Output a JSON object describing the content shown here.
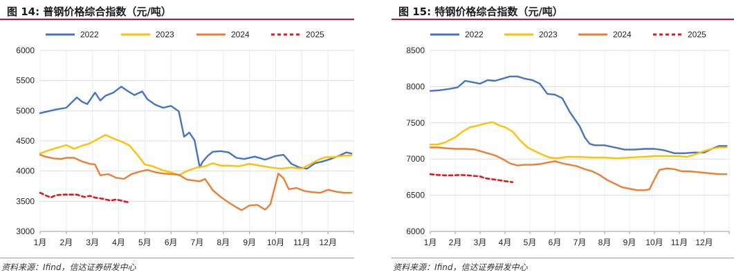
{
  "charts": [
    {
      "title": "图 14:  普钢价格综合指数（元/吨）",
      "source": "资料来源：Ifind，信达证券研发中心",
      "chart_data": {
        "type": "line",
        "title": "普钢价格综合指数（元/吨）",
        "xlabel": "",
        "ylabel": "元/吨",
        "ylim": [
          3000,
          6000
        ],
        "yticks": [
          "3000",
          "3500",
          "4000",
          "4500",
          "5000",
          "5500",
          "6000"
        ],
        "categories": [
          "1月",
          "2月",
          "3月",
          "4月",
          "5月",
          "6月",
          "7月",
          "8月",
          "9月",
          "10月",
          "11月",
          "12月"
        ],
        "x_unit": "month (1 = 1月)",
        "legend_position": "top",
        "series": [
          {
            "name": "2022",
            "color": "#4472C4",
            "dashed": false,
            "x": [
              1.0,
              1.3,
              1.6,
              2.0,
              2.4,
              2.6,
              2.8,
              3.1,
              3.3,
              3.5,
              3.8,
              4.1,
              4.3,
              4.6,
              4.9,
              5.1,
              5.4,
              5.7,
              6.0,
              6.3,
              6.5,
              6.7,
              6.9,
              7.1,
              7.2,
              7.4,
              7.6,
              7.9,
              8.2,
              8.5,
              8.8,
              9.2,
              9.6,
              10.0,
              10.3,
              10.6,
              10.9,
              11.2,
              11.5,
              11.8,
              12.1,
              12.4,
              12.7,
              12.9
            ],
            "y": [
              4960,
              4990,
              5020,
              5050,
              5220,
              5150,
              5110,
              5300,
              5170,
              5250,
              5300,
              5400,
              5340,
              5260,
              5320,
              5190,
              5100,
              5050,
              5080,
              4990,
              4570,
              4640,
              4510,
              4060,
              4150,
              4250,
              4320,
              4330,
              4310,
              4220,
              4200,
              4240,
              4190,
              4250,
              4270,
              4120,
              4060,
              4040,
              4130,
              4160,
              4200,
              4250,
              4310,
              4290
            ]
          },
          {
            "name": "2023",
            "color": "#FFC000",
            "dashed": false,
            "x": [
              1.0,
              1.3,
              1.6,
              2.0,
              2.3,
              2.6,
              2.9,
              3.2,
              3.5,
              3.8,
              4.1,
              4.4,
              4.7,
              5.0,
              5.3,
              5.7,
              6.0,
              6.3,
              6.6,
              7.0,
              7.3,
              7.6,
              7.9,
              8.2,
              8.6,
              9.0,
              9.4,
              9.8,
              10.2,
              10.6,
              11.0,
              11.3,
              11.6,
              11.9,
              12.2,
              12.5,
              12.8,
              12.9
            ],
            "y": [
              4290,
              4340,
              4380,
              4430,
              4370,
              4420,
              4460,
              4530,
              4600,
              4540,
              4490,
              4430,
              4280,
              4110,
              4080,
              4010,
              3980,
              3930,
              4000,
              4060,
              4080,
              4130,
              4090,
              4090,
              4080,
              4120,
              4090,
              4060,
              4040,
              4060,
              4040,
              4110,
              4180,
              4230,
              4230,
              4250,
              4260,
              4260
            ]
          },
          {
            "name": "2024",
            "color": "#ED7D31",
            "dashed": false,
            "x": [
              1.0,
              1.2,
              1.5,
              1.8,
              2.0,
              2.3,
              2.6,
              2.9,
              3.1,
              3.3,
              3.6,
              3.9,
              4.2,
              4.5,
              4.8,
              5.1,
              5.4,
              5.7,
              6.0,
              6.3,
              6.6,
              6.9,
              7.1,
              7.3,
              7.6,
              7.9,
              8.2,
              8.5,
              8.7,
              9.0,
              9.3,
              9.6,
              9.8,
              10.1,
              10.3,
              10.5,
              10.8,
              11.1,
              11.4,
              11.7,
              12.0,
              12.3,
              12.6,
              12.9
            ],
            "y": [
              4270,
              4240,
              4210,
              4200,
              4220,
              4220,
              4160,
              4120,
              4110,
              3930,
              3950,
              3890,
              3870,
              3950,
              3990,
              4020,
              3980,
              3960,
              3950,
              3940,
              3860,
              3840,
              3830,
              3870,
              3680,
              3570,
              3480,
              3400,
              3350,
              3430,
              3440,
              3360,
              3450,
              3960,
              3880,
              3700,
              3720,
              3670,
              3650,
              3640,
              3690,
              3660,
              3640,
              3640
            ]
          },
          {
            "name": "2025",
            "color": "#E8141D",
            "dashed": true,
            "x": [
              1.0,
              1.2,
              1.4,
              1.6,
              1.9,
              2.2,
              2.4,
              2.7,
              2.9,
              3.1,
              3.4,
              3.7,
              3.9,
              4.1,
              4.3,
              4.4
            ],
            "y": [
              3640,
              3600,
              3560,
              3600,
              3610,
              3610,
              3610,
              3570,
              3590,
              3560,
              3540,
              3510,
              3530,
              3510,
              3490,
              3480
            ]
          }
        ]
      }
    },
    {
      "title": "图 15:  特钢价格综合指数（元/吨）",
      "source": "资料来源：Ifind，信达证券研发中心",
      "chart_data": {
        "type": "line",
        "title": "特钢价格综合指数（元/吨）",
        "xlabel": "",
        "ylabel": "元/吨",
        "ylim": [
          6000,
          8500
        ],
        "yticks": [
          "6000",
          "6500",
          "7000",
          "7500",
          "8000",
          "8500"
        ],
        "categories": [
          "1月",
          "2月",
          "3月",
          "4月",
          "5月",
          "6月",
          "7月",
          "8月",
          "9月",
          "10月",
          "11月",
          "12月"
        ],
        "x_unit": "month (1 = 1月)",
        "legend_position": "top",
        "series": [
          {
            "name": "2022",
            "color": "#4472C4",
            "dashed": false,
            "x": [
              1.0,
              1.4,
              1.8,
              2.1,
              2.4,
              2.7,
              3.0,
              3.3,
              3.6,
              3.9,
              4.2,
              4.5,
              4.8,
              5.1,
              5.4,
              5.7,
              6.0,
              6.3,
              6.6,
              6.8,
              7.0,
              7.2,
              7.4,
              7.6,
              7.8,
              8.0,
              8.4,
              8.8,
              9.2,
              9.6,
              10.0,
              10.4,
              10.8,
              11.2,
              11.6,
              11.8,
              12.0,
              12.3,
              12.6,
              12.9
            ],
            "y": [
              7940,
              7950,
              7970,
              7990,
              8080,
              8060,
              8040,
              8090,
              8080,
              8110,
              8140,
              8140,
              8110,
              8090,
              8040,
              7900,
              7890,
              7840,
              7650,
              7550,
              7450,
              7300,
              7210,
              7190,
              7190,
              7190,
              7160,
              7130,
              7130,
              7140,
              7140,
              7120,
              7080,
              7080,
              7090,
              7090,
              7090,
              7140,
              7180,
              7180
            ]
          },
          {
            "name": "2023",
            "color": "#FFC000",
            "dashed": false,
            "x": [
              1.0,
              1.3,
              1.6,
              2.0,
              2.3,
              2.6,
              2.9,
              3.2,
              3.5,
              3.8,
              4.0,
              4.3,
              4.6,
              4.9,
              5.2,
              5.5,
              5.8,
              6.1,
              6.5,
              7.0,
              7.5,
              8.0,
              8.5,
              9.0,
              9.5,
              10.0,
              10.5,
              11.0,
              11.3,
              11.6,
              12.0,
              12.3,
              12.6,
              12.9
            ],
            "y": [
              7200,
              7200,
              7230,
              7300,
              7380,
              7440,
              7460,
              7490,
              7510,
              7460,
              7440,
              7380,
              7260,
              7160,
              7110,
              7060,
              7020,
              7010,
              7030,
              7030,
              7020,
              7020,
              7010,
              7020,
              7030,
              7040,
              7040,
              7040,
              7030,
              7060,
              7110,
              7140,
              7160,
              7160
            ]
          },
          {
            "name": "2024",
            "color": "#ED7D31",
            "dashed": false,
            "x": [
              1.0,
              1.3,
              1.6,
              2.0,
              2.4,
              2.8,
              3.0,
              3.3,
              3.6,
              3.9,
              4.2,
              4.5,
              4.8,
              5.1,
              5.4,
              5.7,
              6.0,
              6.3,
              6.6,
              6.9,
              7.2,
              7.5,
              7.8,
              8.1,
              8.4,
              8.7,
              9.0,
              9.3,
              9.6,
              9.8,
              10.0,
              10.2,
              10.5,
              10.8,
              11.1,
              11.4,
              11.7,
              12.0,
              12.3,
              12.6,
              12.9
            ],
            "y": [
              7160,
              7160,
              7150,
              7140,
              7140,
              7130,
              7110,
              7080,
              7050,
              7000,
              6940,
              6910,
              6920,
              6920,
              6930,
              6950,
              6970,
              6940,
              6920,
              6900,
              6860,
              6830,
              6780,
              6710,
              6660,
              6610,
              6590,
              6570,
              6570,
              6580,
              6720,
              6850,
              6870,
              6860,
              6830,
              6830,
              6820,
              6810,
              6800,
              6790,
              6790
            ]
          },
          {
            "name": "2025",
            "color": "#E8141D",
            "dashed": true,
            "x": [
              1.0,
              1.3,
              1.6,
              1.9,
              2.2,
              2.5,
              2.8,
              3.0,
              3.2,
              3.5,
              3.8,
              4.1,
              4.3
            ],
            "y": [
              6790,
              6780,
              6775,
              6775,
              6780,
              6775,
              6765,
              6760,
              6735,
              6720,
              6705,
              6690,
              6680
            ]
          }
        ]
      }
    }
  ]
}
